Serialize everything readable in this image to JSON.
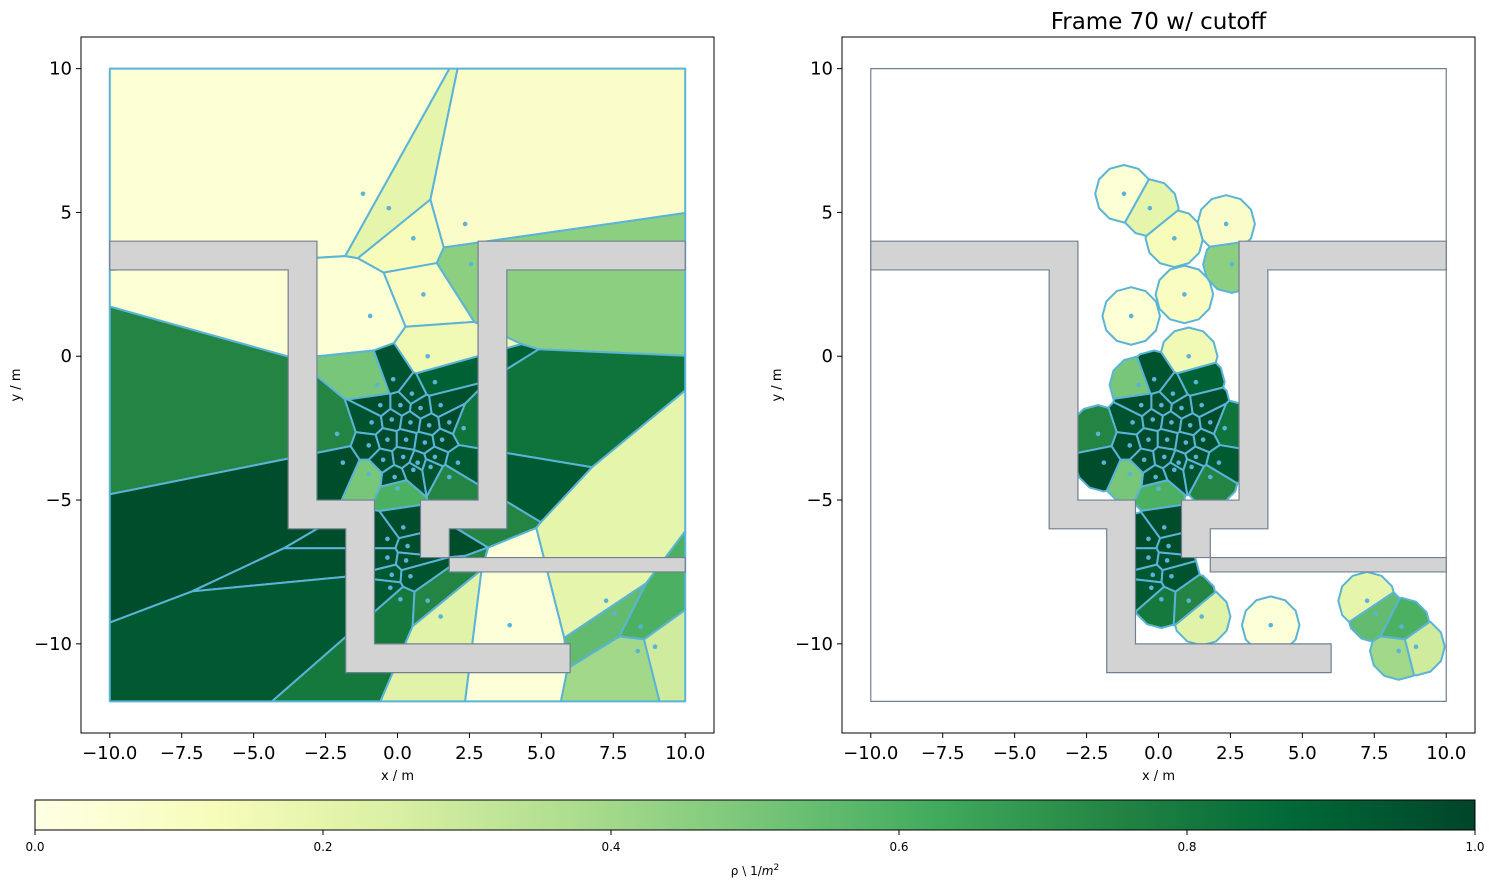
{
  "chart_data": [
    {
      "type": "voronoi",
      "title": "",
      "xlabel": "x / m",
      "ylabel": "y / m",
      "xlim": [
        -11,
        11
      ],
      "ylim": [
        -13.1,
        11.1
      ],
      "xticks": [
        -10,
        -7.5,
        -5,
        -2.5,
        0,
        2.5,
        5,
        7.5,
        10
      ],
      "xtick_labels": [
        "−10.0",
        "−7.5",
        "−5.0",
        "−2.5",
        "0.0",
        "2.5",
        "5.0",
        "7.5",
        "10.0"
      ],
      "yticks": [
        10,
        5,
        0,
        -5,
        -10
      ],
      "ytick_labels": [
        "10",
        "5",
        "0",
        "−5",
        "−10"
      ],
      "cutoff": false
    },
    {
      "type": "voronoi",
      "title": "Frame 70 w/ cutoff",
      "xlabel": "x / m",
      "ylabel": "y / m",
      "xlim": [
        -11,
        11
      ],
      "ylim": [
        -13.1,
        11.1
      ],
      "xticks": [
        -10,
        -7.5,
        -5,
        -2.5,
        0,
        2.5,
        5,
        7.5,
        10
      ],
      "xtick_labels": [
        "−10.0",
        "−7.5",
        "−5.0",
        "−2.5",
        "0.0",
        "2.5",
        "5.0",
        "7.5",
        "10.0"
      ],
      "yticks": [
        10,
        5,
        0,
        -5,
        -10
      ],
      "ytick_labels": [
        "10",
        "5",
        "0",
        "−5",
        "−10"
      ],
      "cutoff": true,
      "cutoff_radius": 1.0
    }
  ],
  "agents": {
    "unit": "m",
    "density_unit": "1/m^2",
    "points": [
      {
        "x": -1.2,
        "y": 5.65,
        "rho": 0.05
      },
      {
        "x": -0.3,
        "y": 5.15,
        "rho": 0.2
      },
      {
        "x": 0.55,
        "y": 4.1,
        "rho": 0.12
      },
      {
        "x": 2.35,
        "y": 4.6,
        "rho": 0.08
      },
      {
        "x": 2.55,
        "y": 3.2,
        "rho": 0.45
      },
      {
        "x": 0.9,
        "y": 2.15,
        "rho": 0.1
      },
      {
        "x": -0.95,
        "y": 1.4,
        "rho": 0.05
      },
      {
        "x": 1.05,
        "y": 0.0,
        "rho": 0.15
      },
      {
        "x": -0.7,
        "y": -1.0,
        "rho": 0.5
      },
      {
        "x": -0.15,
        "y": -0.8,
        "rho": 0.95
      },
      {
        "x": 0.5,
        "y": -1.3,
        "rho": 0.95
      },
      {
        "x": 1.3,
        "y": -0.9,
        "rho": 0.9
      },
      {
        "x": 1.5,
        "y": -1.7,
        "rho": 0.96
      },
      {
        "x": 0.8,
        "y": -1.8,
        "rho": 0.97
      },
      {
        "x": 0.1,
        "y": -1.7,
        "rho": 0.97
      },
      {
        "x": -0.6,
        "y": -1.7,
        "rho": 0.97
      },
      {
        "x": -0.9,
        "y": -2.3,
        "rho": 0.95
      },
      {
        "x": -0.2,
        "y": -2.2,
        "rho": 0.98
      },
      {
        "x": 0.45,
        "y": -2.3,
        "rho": 0.98
      },
      {
        "x": 1.1,
        "y": -2.4,
        "rho": 0.98
      },
      {
        "x": 1.8,
        "y": -2.3,
        "rho": 0.98
      },
      {
        "x": 2.3,
        "y": -2.5,
        "rho": 0.82
      },
      {
        "x": -1.0,
        "y": -3.1,
        "rho": 0.97
      },
      {
        "x": -0.35,
        "y": -2.9,
        "rho": 0.98
      },
      {
        "x": 0.3,
        "y": -2.9,
        "rho": 0.98
      },
      {
        "x": 0.95,
        "y": -3.0,
        "rho": 0.98
      },
      {
        "x": 1.55,
        "y": -2.9,
        "rho": 0.97
      },
      {
        "x": -2.1,
        "y": -2.7,
        "rho": 0.75
      },
      {
        "x": -0.5,
        "y": -3.6,
        "rho": 0.97
      },
      {
        "x": 0.2,
        "y": -3.5,
        "rho": 0.98
      },
      {
        "x": 0.7,
        "y": -3.7,
        "rho": 0.97
      },
      {
        "x": 1.3,
        "y": -3.5,
        "rho": 0.97
      },
      {
        "x": 2.1,
        "y": -3.7,
        "rho": 0.92
      },
      {
        "x": -0.1,
        "y": -4.2,
        "rho": 0.97
      },
      {
        "x": 0.55,
        "y": -3.95,
        "rho": 0.97
      },
      {
        "x": 1.15,
        "y": -3.85,
        "rho": 0.95
      },
      {
        "x": -1.9,
        "y": -3.7,
        "rho": 0.97
      },
      {
        "x": -1.0,
        "y": -4.1,
        "rho": 0.5
      },
      {
        "x": 0.0,
        "y": -4.6,
        "rho": 0.6
      },
      {
        "x": 1.8,
        "y": -4.2,
        "rho": 0.75
      },
      {
        "x": 0.2,
        "y": -5.95,
        "rho": 0.97
      },
      {
        "x": -0.35,
        "y": -6.35,
        "rho": 0.97
      },
      {
        "x": 0.35,
        "y": -6.6,
        "rho": 0.97
      },
      {
        "x": -0.35,
        "y": -7.0,
        "rho": 0.96
      },
      {
        "x": 0.3,
        "y": -7.1,
        "rho": 0.96
      },
      {
        "x": -0.2,
        "y": -7.6,
        "rho": 0.93
      },
      {
        "x": 0.45,
        "y": -7.65,
        "rho": 0.95
      },
      {
        "x": -0.25,
        "y": -8.05,
        "rho": 0.93
      },
      {
        "x": 0.1,
        "y": -8.45,
        "rho": 0.8
      },
      {
        "x": 1.05,
        "y": -8.5,
        "rho": 0.75
      },
      {
        "x": 1.5,
        "y": -9.05,
        "rho": 0.22
      },
      {
        "x": 3.9,
        "y": -9.35,
        "rho": 0.04
      },
      {
        "x": 7.25,
        "y": -8.5,
        "rho": 0.2
      },
      {
        "x": 7.55,
        "y": -8.95,
        "rho": 0.55
      },
      {
        "x": 8.45,
        "y": -9.4,
        "rho": 0.6
      },
      {
        "x": 8.35,
        "y": -10.25,
        "rho": 0.4
      },
      {
        "x": 8.95,
        "y": -10.1,
        "rho": 0.28
      }
    ]
  },
  "geometry": {
    "walkable_area": [
      [
        -10,
        10
      ],
      [
        10,
        10
      ],
      [
        10,
        -12
      ],
      [
        -10,
        -12
      ]
    ],
    "obstacles": [
      [
        [
          -10,
          4
        ],
        [
          -2.8,
          4
        ],
        [
          -2.8,
          -5
        ],
        [
          -0.8,
          -5
        ],
        [
          -0.8,
          -10
        ],
        [
          6,
          -10
        ],
        [
          6,
          -11
        ],
        [
          -1.8,
          -11
        ],
        [
          -1.8,
          -6
        ],
        [
          -3.8,
          -6
        ],
        [
          -3.8,
          3
        ],
        [
          -10,
          3
        ]
      ],
      [
        [
          10,
          4
        ],
        [
          2.8,
          4
        ],
        [
          2.8,
          -5
        ],
        [
          0.8,
          -5
        ],
        [
          0.8,
          -7
        ],
        [
          10,
          -7
        ],
        [
          10,
          -7.5
        ],
        [
          1.8,
          -7.5
        ],
        [
          1.8,
          -6
        ],
        [
          3.8,
          -6
        ],
        [
          3.8,
          3
        ],
        [
          10,
          3
        ]
      ]
    ]
  },
  "colorbar": {
    "label_prefix": "ρ \\ 1/",
    "label_var": "m",
    "label_exp": "2",
    "min": 0.0,
    "max": 1.0,
    "ticks": [
      0.0,
      0.2,
      0.4,
      0.6,
      0.8,
      1.0
    ],
    "tick_labels": [
      "0.0",
      "0.2",
      "0.4",
      "0.6",
      "0.8",
      "1.0"
    ],
    "colormap": "YlGn",
    "stops": [
      "#ffffe5",
      "#f7fcb9",
      "#d9f0a3",
      "#addd8e",
      "#78c679",
      "#41ab5d",
      "#238443",
      "#006837",
      "#004529"
    ]
  },
  "colors": {
    "cell_edge": "#5ab4d8",
    "agent_dot": "#5ab4d8",
    "obstacle_fill": "#d3d3d3",
    "obstacle_edge": "#708090",
    "boundary": "#708090"
  }
}
